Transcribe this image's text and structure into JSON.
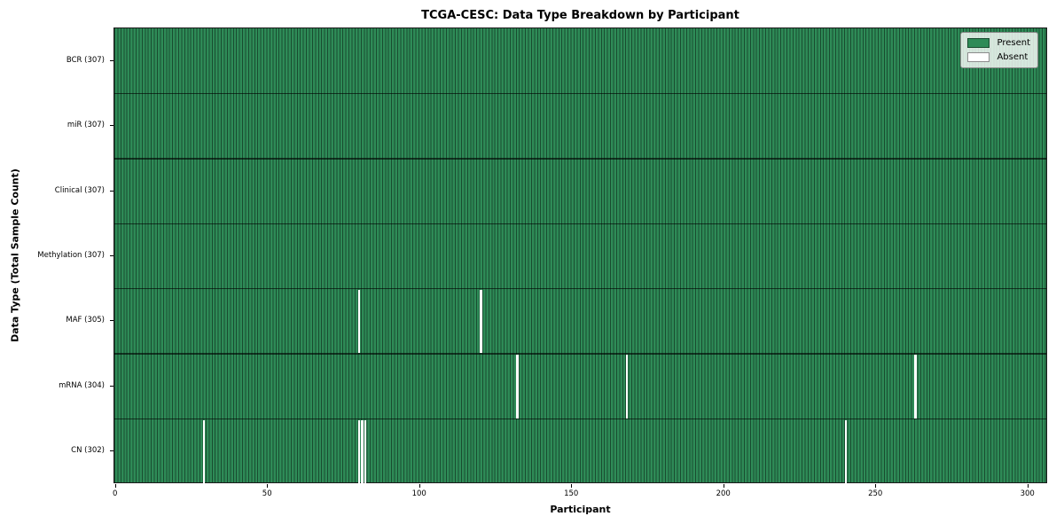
{
  "chart_data": {
    "type": "heatmap",
    "title": "TCGA-CESC: Data Type Breakdown by Participant",
    "xlabel": "Participant",
    "ylabel": "Data Type (Total Sample Count)",
    "x_ticks": [
      0,
      50,
      100,
      150,
      200,
      250,
      300
    ],
    "x_range": [
      0,
      307
    ],
    "n_participants": 307,
    "rows": [
      {
        "label": "BCR (307)",
        "data_type": "BCR",
        "present_count": 307,
        "absent_participants": []
      },
      {
        "label": "miR (307)",
        "data_type": "miR",
        "present_count": 307,
        "absent_participants": []
      },
      {
        "label": "Clinical (307)",
        "data_type": "Clinical",
        "present_count": 307,
        "absent_participants": []
      },
      {
        "label": "Methylation (307)",
        "data_type": "Methylation",
        "present_count": 307,
        "absent_participants": []
      },
      {
        "label": "MAF (305)",
        "data_type": "MAF",
        "present_count": 305,
        "absent_participants": [
          80,
          120
        ]
      },
      {
        "label": "mRNA (304)",
        "data_type": "mRNA",
        "present_count": 304,
        "absent_participants": [
          132,
          168,
          263
        ]
      },
      {
        "label": "CN (302)",
        "data_type": "CN",
        "present_count": 302,
        "absent_participants": [
          29,
          80,
          81,
          82,
          240
        ]
      }
    ],
    "legend": {
      "position": "upper right",
      "entries": [
        {
          "label": "Present",
          "color": "#2e8b57"
        },
        {
          "label": "Absent",
          "color": "#ffffff"
        }
      ]
    },
    "colors": {
      "present": "#2e8b57",
      "absent": "#ffffff",
      "bar_edge": "rgba(0,0,0,0.45)",
      "row_separator": "rgba(0,0,0,0.62)"
    },
    "grid": false
  }
}
